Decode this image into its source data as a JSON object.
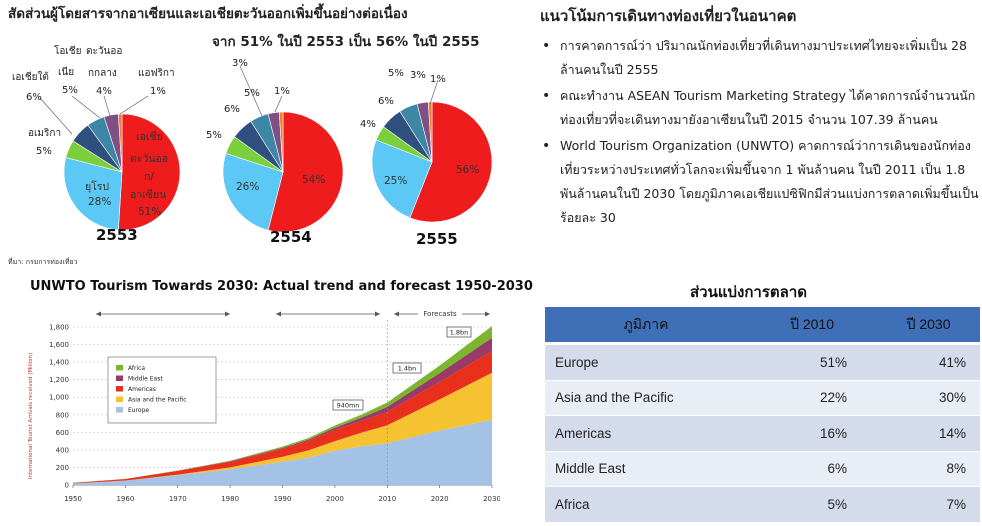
{
  "pies": {
    "title_line1": "สัดส่วนผู้โดยสารจากอาเซียนและเอเชียตะวันออกเพิ่มขึ้นอย่างต่อเนื่อง",
    "title_line2": "จาก 51% ในปี 2553 เป็น 56% ในปี 2555",
    "source": "ที่มา: กรมการท่องเที่ยว",
    "colors": {
      "east_asia": "#ee1c1c",
      "europe": "#5bc8f5",
      "americas": "#7ccf3c",
      "south_asia": "#2f4f7f",
      "oceania": "#3c86a6",
      "middle_east": "#7f4f86",
      "africa": "#ee8030",
      "other": "#f3e000"
    },
    "labels_2553": {
      "east_asia": [
        "เอเชีย",
        "ตะวันออ",
        "ก/",
        "อาเซียน",
        "51%"
      ],
      "europe": [
        "ยุโรป",
        "28%"
      ],
      "americas": [
        "อเมริกา",
        "5%"
      ],
      "south_asia": [
        "เอเชียใต้",
        "6%"
      ],
      "oceania": [
        "โอเชีย",
        "เนีย",
        "5%"
      ],
      "middle_east": [
        "ตะวันออ",
        "กกลาง",
        "4%"
      ],
      "africa": [
        "แอฟริกา",
        "1%"
      ]
    },
    "labels_2554": {
      "east_asia": "54%",
      "europe": "26%",
      "americas": "5%",
      "south_asia": "6%",
      "oceania": "5%",
      "middle_east": "3%",
      "africa": "1%"
    },
    "labels_2555": {
      "east_asia": "56%",
      "europe": "25%",
      "americas": "4%",
      "south_asia": "6%",
      "oceania": "5%",
      "middle_east": "3%",
      "africa": "1%"
    }
  },
  "line_chart": {
    "title": "UNWTO Tourism Towards 2030: Actual trend and forecast 1950-2030",
    "ylabel": "International Tourist Arrivals received (Million)",
    "forecasts_label": "Forecasts",
    "ann_940": "940mn",
    "ann_14": "1.4bn",
    "ann_18": "1.8bn"
  },
  "right": {
    "title": "แนวโน้มการเดินทางท่องเที่ยวในอนาคต",
    "bullets": [
      "การคาดการณ์ว่า ปริมาณนักท่องเที่ยวที่เดินทางมาประเทศไทยจะเพิ่มเป็น 28 ล้านคนในปี 2555",
      "คณะทำงาน ASEAN Tourism Marketing Strategy ได้คาดการณ์จำนวนนักท่องเที่ยวที่จะเดินทางมายังอาเซียนในปี 2015 จำนวน 107.39 ล้านคน",
      "World Tourism Organization (UNWTO) คาดการณ์ว่าการเดินของนักท่องเที่ยวระหว่างประเทศทั่วโลกจะเพิ่มขึ้นจาก 1 พันล้านคน ในปี 2011 เป็น 1.8 พันล้านคนในปี 2030 โดยภูมิภาคเอเชียแปซิฟิกมีส่วนแบ่งการตลาดเพิ่มขึ้นเป็นร้อยละ 30"
    ]
  },
  "market_share": {
    "title": "ส่วนแบ่งการตลาด",
    "headers": [
      "ภูมิภาค",
      "ปี 2010",
      "ปี 2030"
    ],
    "rows": [
      [
        "Europe",
        "51%",
        "41%"
      ],
      [
        "Asia and the Pacific",
        "22%",
        "30%"
      ],
      [
        "Americas",
        "16%",
        "14%"
      ],
      [
        "Middle East",
        "6%",
        "8%"
      ],
      [
        "Africa",
        "5%",
        "7%"
      ]
    ]
  },
  "chart_data": [
    {
      "type": "pie",
      "title": "2553",
      "categories": [
        "เอเชียตะวันออก/อาเซียน",
        "ยุโรป",
        "อเมริกา",
        "เอเชียใต้",
        "โอเชียเนีย",
        "ตะวันออกกลาง",
        "แอฟริกา"
      ],
      "values": [
        51,
        28,
        5,
        6,
        5,
        4,
        1
      ]
    },
    {
      "type": "pie",
      "title": "2554",
      "values": [
        54,
        26,
        5,
        6,
        5,
        3,
        1
      ]
    },
    {
      "type": "pie",
      "title": "2555",
      "values": [
        56,
        25,
        4,
        6,
        5,
        3,
        1
      ]
    },
    {
      "type": "area",
      "title": "UNWTO Tourism Towards 2030: Actual trend and forecast 1950-2030",
      "ylabel": "International Tourist Arrivals received (Million)",
      "x": [
        1950,
        1960,
        1970,
        1980,
        1990,
        1995,
        2000,
        2005,
        2010,
        2020,
        2030
      ],
      "ylim": [
        0,
        1800
      ],
      "xticks": [
        1950,
        1960,
        1970,
        1980,
        1990,
        2000,
        2010,
        2020,
        2030
      ],
      "yticks": [
        0,
        200,
        400,
        600,
        800,
        1000,
        1200,
        1400,
        1600,
        1800
      ],
      "yticklabels": [
        "0",
        "200",
        "400",
        "600",
        "800",
        "1,000",
        "1,200",
        "1,400",
        "1,600",
        "1,800"
      ],
      "legend_position": "top-left",
      "series": [
        {
          "name": "Europe",
          "values": [
            17,
            50,
            113,
            178,
            265,
            310,
            390,
            440,
            475,
            620,
            744
          ],
          "color": "#a4c2e6"
        },
        {
          "name": "Asia and the Pacific",
          "values": [
            0.2,
            1,
            6,
            23,
            56,
            85,
            110,
            155,
            205,
            355,
            535
          ],
          "color": "#f5c231"
        },
        {
          "name": "Americas",
          "values": [
            7,
            17,
            42,
            62,
            93,
            110,
            128,
            134,
            150,
            199,
            248
          ],
          "color": "#e8301c"
        },
        {
          "name": "Middle East",
          "values": [
            0.2,
            0.6,
            2,
            7,
            9,
            13,
            24,
            37,
            60,
            101,
            149
          ],
          "color": "#9a3a66"
        },
        {
          "name": "Africa",
          "values": [
            0.5,
            0.8,
            2,
            7,
            15,
            19,
            26,
            35,
            50,
            85,
            134
          ],
          "color": "#7cb52e"
        }
      ]
    }
  ]
}
